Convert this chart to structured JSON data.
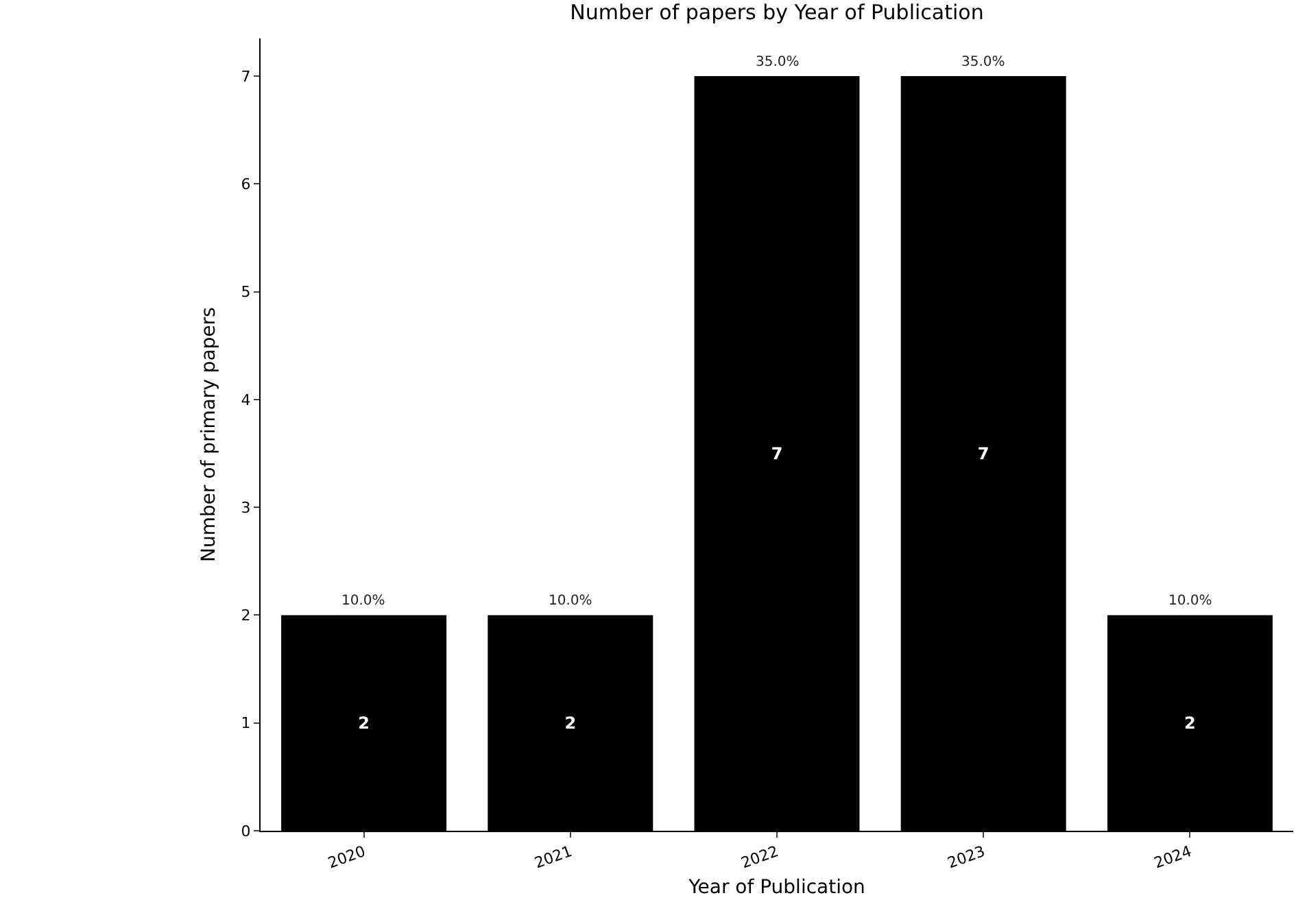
{
  "chart_data": {
    "type": "bar",
    "title": "Number of papers by Year of Publication",
    "xlabel": "Year of Publication",
    "ylabel": "Number of primary papers",
    "categories": [
      "2020",
      "2021",
      "2022",
      "2023",
      "2024"
    ],
    "values": [
      2,
      2,
      7,
      7,
      2
    ],
    "color": "#000000",
    "annotations": [
      {
        "text": "10.0%",
        "x": "2020",
        "y": 2
      },
      {
        "text": "10.0%",
        "x": "2021",
        "y": 2
      },
      {
        "text": "35.0%",
        "x": "2022",
        "y": 7
      },
      {
        "text": "35.0%",
        "x": "2023",
        "y": 7
      },
      {
        "text": "10.0%",
        "x": "2024",
        "y": 2
      }
    ],
    "data_labels": true,
    "ylim": [
      0,
      7.35
    ],
    "yticks": [
      0,
      1,
      2,
      3,
      4,
      5,
      6,
      7
    ]
  }
}
